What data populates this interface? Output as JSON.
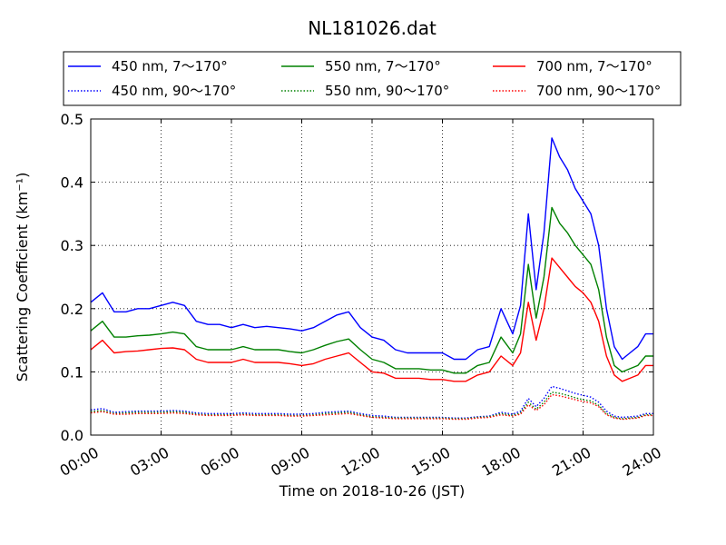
{
  "chart_data": {
    "type": "line",
    "title": "NL181026.dat",
    "xlabel": "Time on 2018-10-26 (JST)",
    "ylabel": "Scattering Coefficient (km⁻¹)",
    "xlim": [
      "00:00",
      "24:00"
    ],
    "ylim": [
      0.0,
      0.5
    ],
    "x_ticks": [
      "00:00",
      "03:00",
      "06:00",
      "09:00",
      "12:00",
      "15:00",
      "18:00",
      "21:00",
      "24:00"
    ],
    "y_ticks": [
      "0.0",
      "0.1",
      "0.2",
      "0.3",
      "0.4",
      "0.5"
    ],
    "grid": true,
    "legend_position": "top",
    "x": [
      "00:00",
      "00:30",
      "01:00",
      "01:30",
      "02:00",
      "02:30",
      "03:00",
      "03:30",
      "04:00",
      "04:30",
      "05:00",
      "05:30",
      "06:00",
      "06:30",
      "07:00",
      "07:30",
      "08:00",
      "08:30",
      "09:00",
      "09:30",
      "10:00",
      "10:30",
      "11:00",
      "11:30",
      "12:00",
      "12:30",
      "13:00",
      "13:30",
      "14:00",
      "14:30",
      "15:00",
      "15:30",
      "16:00",
      "16:30",
      "17:00",
      "17:30",
      "18:00",
      "18:20",
      "18:40",
      "19:00",
      "19:20",
      "19:40",
      "20:00",
      "20:20",
      "20:40",
      "21:00",
      "21:20",
      "21:40",
      "22:00",
      "22:20",
      "22:40",
      "23:00",
      "23:20",
      "23:40",
      "24:00"
    ],
    "series": [
      {
        "name": "450 nm, 7～170°",
        "color": "#0000ff",
        "style": "solid",
        "values": [
          0.21,
          0.225,
          0.195,
          0.195,
          0.2,
          0.2,
          0.205,
          0.21,
          0.205,
          0.18,
          0.175,
          0.175,
          0.17,
          0.175,
          0.17,
          0.172,
          0.17,
          0.168,
          0.165,
          0.17,
          0.18,
          0.19,
          0.195,
          0.17,
          0.155,
          0.15,
          0.135,
          0.13,
          0.13,
          0.13,
          0.13,
          0.12,
          0.12,
          0.135,
          0.14,
          0.2,
          0.16,
          0.205,
          0.35,
          0.23,
          0.32,
          0.47,
          0.44,
          0.42,
          0.39,
          0.37,
          0.35,
          0.3,
          0.2,
          0.14,
          0.12,
          0.13,
          0.14,
          0.16,
          0.16
        ]
      },
      {
        "name": "550 nm, 7～170°",
        "color": "#008000",
        "style": "solid",
        "values": [
          0.165,
          0.18,
          0.155,
          0.155,
          0.157,
          0.158,
          0.16,
          0.163,
          0.16,
          0.14,
          0.135,
          0.135,
          0.135,
          0.14,
          0.135,
          0.135,
          0.135,
          0.132,
          0.13,
          0.135,
          0.142,
          0.148,
          0.152,
          0.135,
          0.12,
          0.115,
          0.105,
          0.105,
          0.105,
          0.103,
          0.103,
          0.098,
          0.098,
          0.11,
          0.115,
          0.155,
          0.13,
          0.16,
          0.27,
          0.185,
          0.25,
          0.36,
          0.335,
          0.32,
          0.3,
          0.285,
          0.27,
          0.23,
          0.155,
          0.11,
          0.1,
          0.105,
          0.11,
          0.125,
          0.125
        ]
      },
      {
        "name": "700 nm, 7～170°",
        "color": "#ff0000",
        "style": "solid",
        "values": [
          0.135,
          0.15,
          0.13,
          0.132,
          0.133,
          0.135,
          0.137,
          0.138,
          0.135,
          0.12,
          0.115,
          0.115,
          0.115,
          0.12,
          0.115,
          0.115,
          0.115,
          0.113,
          0.11,
          0.113,
          0.12,
          0.125,
          0.13,
          0.115,
          0.1,
          0.098,
          0.09,
          0.09,
          0.09,
          0.088,
          0.088,
          0.085,
          0.085,
          0.095,
          0.1,
          0.125,
          0.11,
          0.13,
          0.21,
          0.15,
          0.2,
          0.28,
          0.265,
          0.25,
          0.235,
          0.225,
          0.21,
          0.18,
          0.125,
          0.095,
          0.085,
          0.09,
          0.095,
          0.11,
          0.11
        ]
      },
      {
        "name": "450 nm, 90～170°",
        "color": "#0000ff",
        "style": "dotted",
        "values": [
          0.04,
          0.042,
          0.036,
          0.037,
          0.038,
          0.038,
          0.038,
          0.039,
          0.038,
          0.035,
          0.034,
          0.034,
          0.034,
          0.035,
          0.034,
          0.034,
          0.034,
          0.033,
          0.033,
          0.034,
          0.036,
          0.037,
          0.038,
          0.034,
          0.031,
          0.03,
          0.028,
          0.028,
          0.028,
          0.028,
          0.028,
          0.027,
          0.027,
          0.029,
          0.03,
          0.036,
          0.033,
          0.038,
          0.058,
          0.045,
          0.058,
          0.077,
          0.074,
          0.07,
          0.066,
          0.063,
          0.06,
          0.052,
          0.038,
          0.03,
          0.028,
          0.029,
          0.03,
          0.034,
          0.034
        ]
      },
      {
        "name": "550 nm, 90～170°",
        "color": "#008000",
        "style": "dotted",
        "values": [
          0.037,
          0.039,
          0.034,
          0.035,
          0.036,
          0.036,
          0.036,
          0.037,
          0.036,
          0.033,
          0.032,
          0.032,
          0.032,
          0.033,
          0.032,
          0.032,
          0.032,
          0.031,
          0.031,
          0.032,
          0.034,
          0.035,
          0.036,
          0.032,
          0.029,
          0.028,
          0.027,
          0.027,
          0.027,
          0.027,
          0.027,
          0.026,
          0.026,
          0.028,
          0.029,
          0.034,
          0.031,
          0.035,
          0.052,
          0.041,
          0.052,
          0.068,
          0.066,
          0.063,
          0.059,
          0.056,
          0.054,
          0.047,
          0.034,
          0.028,
          0.026,
          0.027,
          0.028,
          0.032,
          0.032
        ]
      },
      {
        "name": "700 nm, 90～170°",
        "color": "#ff0000",
        "style": "dotted",
        "values": [
          0.035,
          0.037,
          0.033,
          0.033,
          0.034,
          0.034,
          0.034,
          0.035,
          0.034,
          0.032,
          0.031,
          0.031,
          0.031,
          0.032,
          0.031,
          0.031,
          0.031,
          0.03,
          0.03,
          0.031,
          0.032,
          0.033,
          0.034,
          0.031,
          0.028,
          0.027,
          0.026,
          0.026,
          0.026,
          0.026,
          0.026,
          0.025,
          0.025,
          0.027,
          0.028,
          0.032,
          0.03,
          0.033,
          0.048,
          0.039,
          0.048,
          0.064,
          0.062,
          0.059,
          0.056,
          0.053,
          0.051,
          0.045,
          0.032,
          0.027,
          0.025,
          0.026,
          0.027,
          0.031,
          0.031
        ]
      }
    ]
  }
}
